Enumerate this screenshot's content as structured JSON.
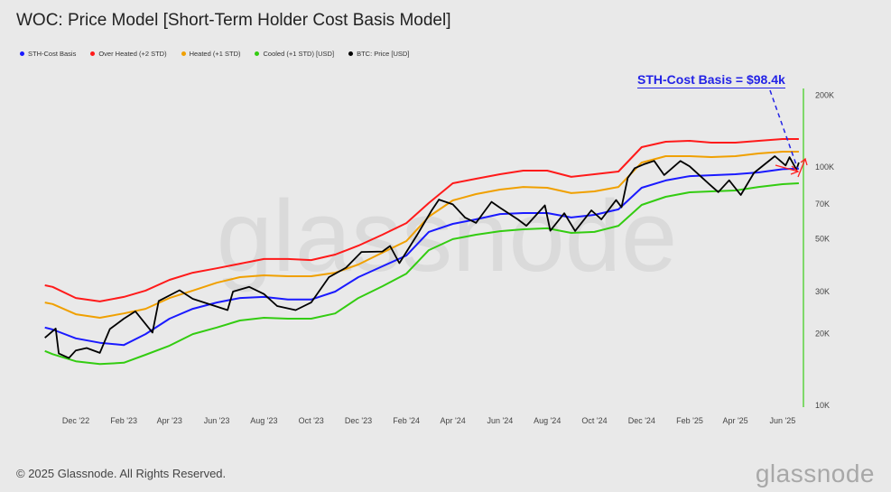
{
  "title": "WOC: Price Model [Short-Term Holder Cost Basis Model]",
  "legend": [
    {
      "label": "STH-Cost Basis",
      "color": "#1a1aff"
    },
    {
      "label": "Over Heated (+2 STD)",
      "color": "#ff1a1a"
    },
    {
      "label": "Heated (+1 STD)",
      "color": "#f0a000"
    },
    {
      "label": "Cooled (+1 STD) [USD]",
      "color": "#33cc11"
    },
    {
      "label": "BTC: Price [USD]",
      "color": "#000000"
    }
  ],
  "annotation": {
    "text": "STH-Cost Basis = $98.4k",
    "color": "#2323e6",
    "arrow_color": "#ff2020"
  },
  "footer": {
    "copyright": "© 2025 Glassnode. All Rights Reserved.",
    "logo": "glassnode",
    "watermark": "glassnode"
  },
  "chart_data": {
    "type": "line",
    "title": "WOC: Price Model [Short-Term Holder Cost Basis Model]",
    "y_scale": "log",
    "ylim": [
      10000,
      200000
    ],
    "y_ticks": [
      {
        "value": 10000,
        "label": "10K"
      },
      {
        "value": 20000,
        "label": "20K"
      },
      {
        "value": 30000,
        "label": "30K"
      },
      {
        "value": 50000,
        "label": "50K"
      },
      {
        "value": 70000,
        "label": "70K"
      },
      {
        "value": 100000,
        "label": "100K"
      },
      {
        "value": 200000,
        "label": "200K"
      }
    ],
    "x_ticks": [
      {
        "date": "2022-12-01",
        "label": "Dec '22"
      },
      {
        "date": "2023-02-01",
        "label": "Feb '23"
      },
      {
        "date": "2023-04-01",
        "label": "Apr '23"
      },
      {
        "date": "2023-06-01",
        "label": "Jun '23"
      },
      {
        "date": "2023-08-01",
        "label": "Aug '23"
      },
      {
        "date": "2023-10-01",
        "label": "Oct '23"
      },
      {
        "date": "2023-12-01",
        "label": "Dec '23"
      },
      {
        "date": "2024-02-01",
        "label": "Feb '24"
      },
      {
        "date": "2024-04-01",
        "label": "Apr '24"
      },
      {
        "date": "2024-06-01",
        "label": "Jun '24"
      },
      {
        "date": "2024-08-01",
        "label": "Aug '24"
      },
      {
        "date": "2024-10-01",
        "label": "Oct '24"
      },
      {
        "date": "2024-12-01",
        "label": "Dec '24"
      },
      {
        "date": "2025-02-01",
        "label": "Feb '25"
      },
      {
        "date": "2025-04-01",
        "label": "Apr '25"
      },
      {
        "date": "2025-06-01",
        "label": "Jun '25"
      }
    ],
    "legend_position": "top-left",
    "grid": false,
    "band_dates": [
      "2022-10-22",
      "2022-11-01",
      "2022-12-01",
      "2023-01-01",
      "2023-02-01",
      "2023-03-01",
      "2023-04-01",
      "2023-05-01",
      "2023-06-01",
      "2023-07-01",
      "2023-08-01",
      "2023-09-01",
      "2023-10-01",
      "2023-11-01",
      "2023-12-01",
      "2024-01-01",
      "2024-02-01",
      "2024-03-01",
      "2024-04-01",
      "2024-05-01",
      "2024-06-01",
      "2024-07-01",
      "2024-08-01",
      "2024-09-01",
      "2024-10-01",
      "2024-11-01",
      "2024-12-01",
      "2025-01-01",
      "2025-02-01",
      "2025-03-01",
      "2025-04-01",
      "2025-05-01",
      "2025-06-01",
      "2025-06-22"
    ],
    "series": [
      {
        "name": "Over Heated (+2 STD)",
        "color": "#ff1a1a",
        "values": [
          31900,
          31400,
          28200,
          27300,
          28500,
          30300,
          33600,
          36000,
          37600,
          39300,
          41100,
          41100,
          40700,
          42900,
          46800,
          52000,
          58200,
          70600,
          85500,
          89300,
          93300,
          96600,
          96600,
          90900,
          93300,
          95700,
          121200,
          127700,
          128800,
          126600,
          126600,
          128800,
          131100,
          131100
        ]
      },
      {
        "name": "Heated (+1 STD)",
        "color": "#f0a000",
        "values": [
          27000,
          26600,
          24100,
          23300,
          24300,
          25400,
          28200,
          30300,
          32700,
          34500,
          35100,
          34800,
          34800,
          36000,
          39000,
          43700,
          48900,
          61900,
          72400,
          77000,
          80400,
          82500,
          81800,
          77700,
          79000,
          82500,
          104400,
          111000,
          111000,
          110100,
          111000,
          114000,
          116000,
          116000
        ]
      },
      {
        "name": "STH-Cost Basis",
        "color": "#1a1aff",
        "values": [
          21200,
          20800,
          19100,
          18300,
          17900,
          19900,
          23100,
          25400,
          27000,
          28200,
          28500,
          27800,
          27800,
          30000,
          34500,
          38300,
          42500,
          53400,
          57700,
          60300,
          63500,
          64100,
          64100,
          61400,
          63000,
          66400,
          81800,
          87800,
          91600,
          92400,
          93300,
          94900,
          97900,
          98400
        ]
      },
      {
        "name": "Cooled (+1 STD) [USD]",
        "color": "#33cc11",
        "values": [
          16900,
          16400,
          15300,
          14900,
          15100,
          16300,
          17800,
          19900,
          21200,
          22700,
          23300,
          23100,
          23100,
          24300,
          28200,
          31600,
          35700,
          44800,
          49800,
          52000,
          53800,
          54800,
          55300,
          52900,
          53400,
          56700,
          69300,
          75000,
          78300,
          79000,
          79700,
          82500,
          84700,
          85500
        ]
      }
    ],
    "price": {
      "name": "BTC: Price [USD]",
      "color": "#000000",
      "dates": [
        "2022-10-22",
        "2022-11-05",
        "2022-11-09",
        "2022-11-22",
        "2022-12-01",
        "2022-12-15",
        "2023-01-01",
        "2023-01-14",
        "2023-02-01",
        "2023-02-16",
        "2023-03-10",
        "2023-03-18",
        "2023-04-14",
        "2023-05-01",
        "2023-06-15",
        "2023-06-22",
        "2023-07-13",
        "2023-08-01",
        "2023-08-18",
        "2023-09-11",
        "2023-10-01",
        "2023-10-24",
        "2023-11-15",
        "2023-12-05",
        "2024-01-01",
        "2024-01-11",
        "2024-01-23",
        "2024-02-15",
        "2024-03-05",
        "2024-03-14",
        "2024-04-01",
        "2024-04-17",
        "2024-05-01",
        "2024-05-21",
        "2024-06-01",
        "2024-06-24",
        "2024-07-05",
        "2024-07-29",
        "2024-08-05",
        "2024-08-23",
        "2024-09-06",
        "2024-09-27",
        "2024-10-10",
        "2024-10-29",
        "2024-11-05",
        "2024-11-13",
        "2024-11-22",
        "2024-12-05",
        "2024-12-17",
        "2024-12-30",
        "2025-01-20",
        "2025-02-01",
        "2025-02-27",
        "2025-03-10",
        "2025-03-24",
        "2025-04-08",
        "2025-04-25",
        "2025-05-22",
        "2025-06-05",
        "2025-06-10",
        "2025-06-19",
        "2025-06-22"
      ],
      "values": [
        19200,
        21000,
        16500,
        15800,
        17000,
        17400,
        16600,
        20900,
        23100,
        24800,
        20200,
        27400,
        30400,
        28000,
        25100,
        30000,
        31400,
        29300,
        26100,
        25100,
        27000,
        34500,
        37800,
        44000,
        44200,
        46600,
        39500,
        52000,
        66000,
        73000,
        69700,
        61300,
        58300,
        71400,
        67500,
        60300,
        56700,
        69000,
        54000,
        64000,
        53900,
        65800,
        60300,
        72700,
        67800,
        90000,
        98900,
        103000,
        106100,
        92500,
        106000,
        100600,
        84300,
        78500,
        88000,
        76300,
        94500,
        111000,
        101500,
        110000,
        97500,
        104500
      ]
    }
  }
}
